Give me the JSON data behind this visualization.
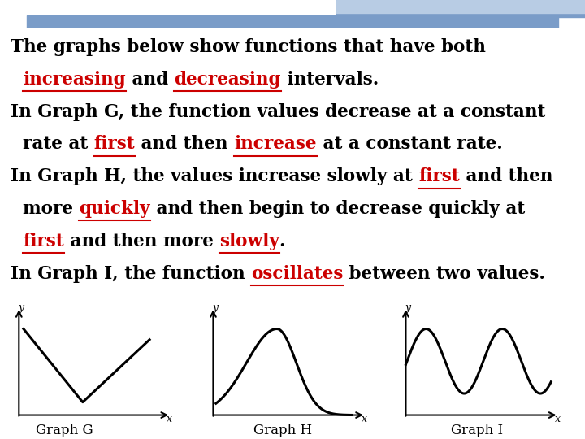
{
  "bg_color": "#ffffff",
  "header_dark": "#4a4f5a",
  "header_blue": "#7a9cc8",
  "header_light_blue": "#b8cce4",
  "curve_color": "black",
  "curve_lw": 2.2,
  "text_fontsize": 15.5,
  "graph_label_fontsize": 12,
  "lines": [
    [
      {
        "t": "The graphs below show functions that have both",
        "c": "black",
        "u": false
      }
    ],
    [
      {
        "t": "  ",
        "c": "black",
        "u": false
      },
      {
        "t": "increasing",
        "c": "#cc0000",
        "u": true
      },
      {
        "t": " and ",
        "c": "black",
        "u": false
      },
      {
        "t": "decreasing",
        "c": "#cc0000",
        "u": true
      },
      {
        "t": " intervals.",
        "c": "black",
        "u": false
      }
    ],
    [
      {
        "t": "In Graph G, the function values decrease at a constant",
        "c": "black",
        "u": false
      }
    ],
    [
      {
        "t": "  rate at ",
        "c": "black",
        "u": false
      },
      {
        "t": "first",
        "c": "#cc0000",
        "u": true
      },
      {
        "t": " and then ",
        "c": "black",
        "u": false
      },
      {
        "t": "increase",
        "c": "#cc0000",
        "u": true
      },
      {
        "t": " at a constant rate.",
        "c": "black",
        "u": false
      }
    ],
    [
      {
        "t": "In Graph H, the values increase slowly at ",
        "c": "black",
        "u": false
      },
      {
        "t": "first",
        "c": "#cc0000",
        "u": true
      },
      {
        "t": " and then",
        "c": "black",
        "u": false
      }
    ],
    [
      {
        "t": "  more ",
        "c": "black",
        "u": false
      },
      {
        "t": "quickly",
        "c": "#cc0000",
        "u": true
      },
      {
        "t": " and then begin to decrease quickly at",
        "c": "black",
        "u": false
      }
    ],
    [
      {
        "t": "  ",
        "c": "black",
        "u": false
      },
      {
        "t": "first",
        "c": "#cc0000",
        "u": true
      },
      {
        "t": " and then more ",
        "c": "black",
        "u": false
      },
      {
        "t": "slowly",
        "c": "#cc0000",
        "u": true
      },
      {
        "t": ".",
        "c": "black",
        "u": false
      }
    ],
    [
      {
        "t": "In Graph I, the function ",
        "c": "black",
        "u": false
      },
      {
        "t": "oscillates",
        "c": "#cc0000",
        "u": true
      },
      {
        "t": " between two values.",
        "c": "black",
        "u": false
      }
    ]
  ]
}
